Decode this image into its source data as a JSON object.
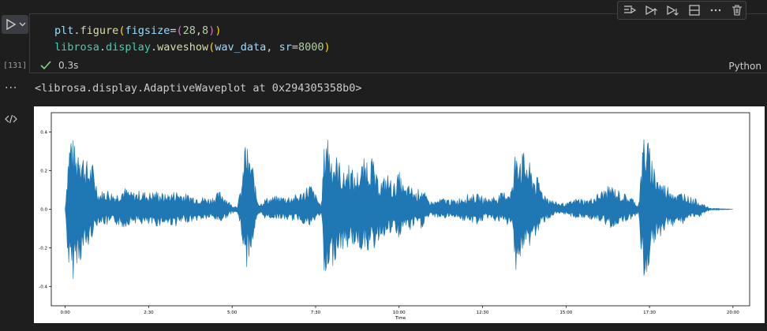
{
  "cell": {
    "exec_count": "[131]",
    "code_line1_parts": [
      "plt",
      ".",
      "figure",
      "(",
      "figsize",
      "=",
      "(",
      "28",
      ",",
      "8",
      ")",
      ")"
    ],
    "code_line2_parts": [
      "librosa",
      ".",
      "display",
      ".",
      "waveshow",
      "(",
      "wav_data",
      ", ",
      "sr",
      "=",
      "8000",
      ")"
    ],
    "status_time": "0.3s",
    "language": "Python"
  },
  "toolbar": {
    "icons": [
      "run-by-line-icon",
      "execute-above-icon",
      "execute-below-icon",
      "split-cell-icon",
      "more-icon",
      "delete-icon"
    ]
  },
  "output": {
    "text": "<librosa.display.AdaptiveWaveplot at 0x294305358b0>",
    "more_label": "···"
  },
  "chart_data": {
    "type": "area",
    "title": "",
    "xlabel": "Time",
    "ylabel": "",
    "xlim": [
      -25,
      1230
    ],
    "ylim": [
      -0.5,
      0.5
    ],
    "x_ticks": [
      0,
      150,
      300,
      450,
      600,
      750,
      900,
      1050,
      1200
    ],
    "x_tick_labels": [
      "0:00",
      "2:30",
      "5:00",
      "7:30",
      "10:00",
      "12:30",
      "15:00",
      "17:30",
      "20:00"
    ],
    "y_ticks": [
      -0.4,
      -0.2,
      0.0,
      0.2,
      0.4
    ],
    "y_tick_labels": [
      "-0.4",
      "-0.2",
      "0.0",
      "0.2",
      "0.4"
    ],
    "color": "#1f77b4",
    "grid": false,
    "series": [
      {
        "x": [
          0,
          5,
          10,
          15,
          20,
          25,
          30,
          40,
          50,
          60,
          75,
          90,
          105,
          120,
          135,
          150,
          165,
          180,
          200,
          220,
          240,
          260,
          280,
          300,
          310,
          320,
          322,
          326,
          330,
          335,
          340,
          345,
          350,
          360,
          380,
          400,
          420,
          440,
          455,
          460,
          465,
          470,
          475,
          480,
          490,
          500,
          510,
          520,
          530,
          540,
          550,
          560,
          570,
          580,
          590,
          600,
          610,
          620,
          630,
          640,
          650,
          660,
          680,
          700,
          720,
          740,
          760,
          780,
          800,
          805,
          810,
          815,
          820,
          830,
          840,
          850,
          860,
          880,
          900,
          920,
          940,
          960,
          980,
          1000,
          1020,
          1030,
          1035,
          1040,
          1045,
          1050,
          1060,
          1070,
          1080,
          1090,
          1100,
          1110,
          1120,
          1130,
          1140,
          1150,
          1160,
          1170,
          1180,
          1190,
          1200
        ],
        "ymax": [
          0.005,
          0.3,
          0.44,
          0.36,
          0.3,
          0.42,
          0.32,
          0.25,
          0.24,
          0.09,
          0.11,
          0.08,
          0.12,
          0.09,
          0.1,
          0.09,
          0.1,
          0.08,
          0.1,
          0.08,
          0.07,
          0.06,
          0.1,
          0.02,
          0.02,
          0.2,
          0.38,
          0.36,
          0.27,
          0.29,
          0.16,
          0.06,
          0.03,
          0.06,
          0.07,
          0.07,
          0.08,
          0.14,
          0.05,
          0.02,
          0.31,
          0.47,
          0.35,
          0.3,
          0.28,
          0.19,
          0.26,
          0.18,
          0.23,
          0.28,
          0.3,
          0.17,
          0.16,
          0.19,
          0.13,
          0.2,
          0.11,
          0.13,
          0.09,
          0.13,
          0.06,
          0.04,
          0.06,
          0.05,
          0.08,
          0.08,
          0.06,
          0.08,
          0.11,
          0.14,
          0.38,
          0.36,
          0.31,
          0.28,
          0.2,
          0.16,
          0.09,
          0.04,
          0.03,
          0.06,
          0.05,
          0.09,
          0.13,
          0.09,
          0.06,
          0.02,
          0.2,
          0.43,
          0.39,
          0.33,
          0.22,
          0.15,
          0.13,
          0.12,
          0.08,
          0.1,
          0.07,
          0.06,
          0.04,
          0.02,
          0.005,
          0.005,
          0.003,
          0.002,
          0.0
        ],
        "ymin": [
          -0.005,
          -0.28,
          -0.42,
          -0.36,
          -0.28,
          -0.3,
          -0.25,
          -0.22,
          -0.13,
          -0.07,
          -0.09,
          -0.08,
          -0.1,
          -0.07,
          -0.08,
          -0.09,
          -0.09,
          -0.08,
          -0.09,
          -0.07,
          -0.06,
          -0.05,
          -0.07,
          -0.02,
          -0.02,
          -0.2,
          -0.33,
          -0.32,
          -0.25,
          -0.22,
          -0.12,
          -0.06,
          -0.03,
          -0.05,
          -0.05,
          -0.06,
          -0.06,
          -0.1,
          -0.04,
          -0.02,
          -0.37,
          -0.46,
          -0.36,
          -0.31,
          -0.22,
          -0.22,
          -0.2,
          -0.19,
          -0.22,
          -0.2,
          -0.25,
          -0.18,
          -0.14,
          -0.15,
          -0.12,
          -0.16,
          -0.09,
          -0.12,
          -0.08,
          -0.11,
          -0.05,
          -0.04,
          -0.05,
          -0.04,
          -0.07,
          -0.08,
          -0.05,
          -0.07,
          -0.09,
          -0.14,
          -0.32,
          -0.3,
          -0.26,
          -0.22,
          -0.17,
          -0.13,
          -0.07,
          -0.03,
          -0.03,
          -0.05,
          -0.05,
          -0.07,
          -0.1,
          -0.07,
          -0.05,
          -0.02,
          -0.23,
          -0.42,
          -0.36,
          -0.28,
          -0.2,
          -0.14,
          -0.1,
          -0.1,
          -0.06,
          -0.08,
          -0.05,
          -0.05,
          -0.04,
          -0.02,
          -0.005,
          -0.005,
          -0.003,
          -0.002,
          0.0
        ]
      }
    ]
  }
}
